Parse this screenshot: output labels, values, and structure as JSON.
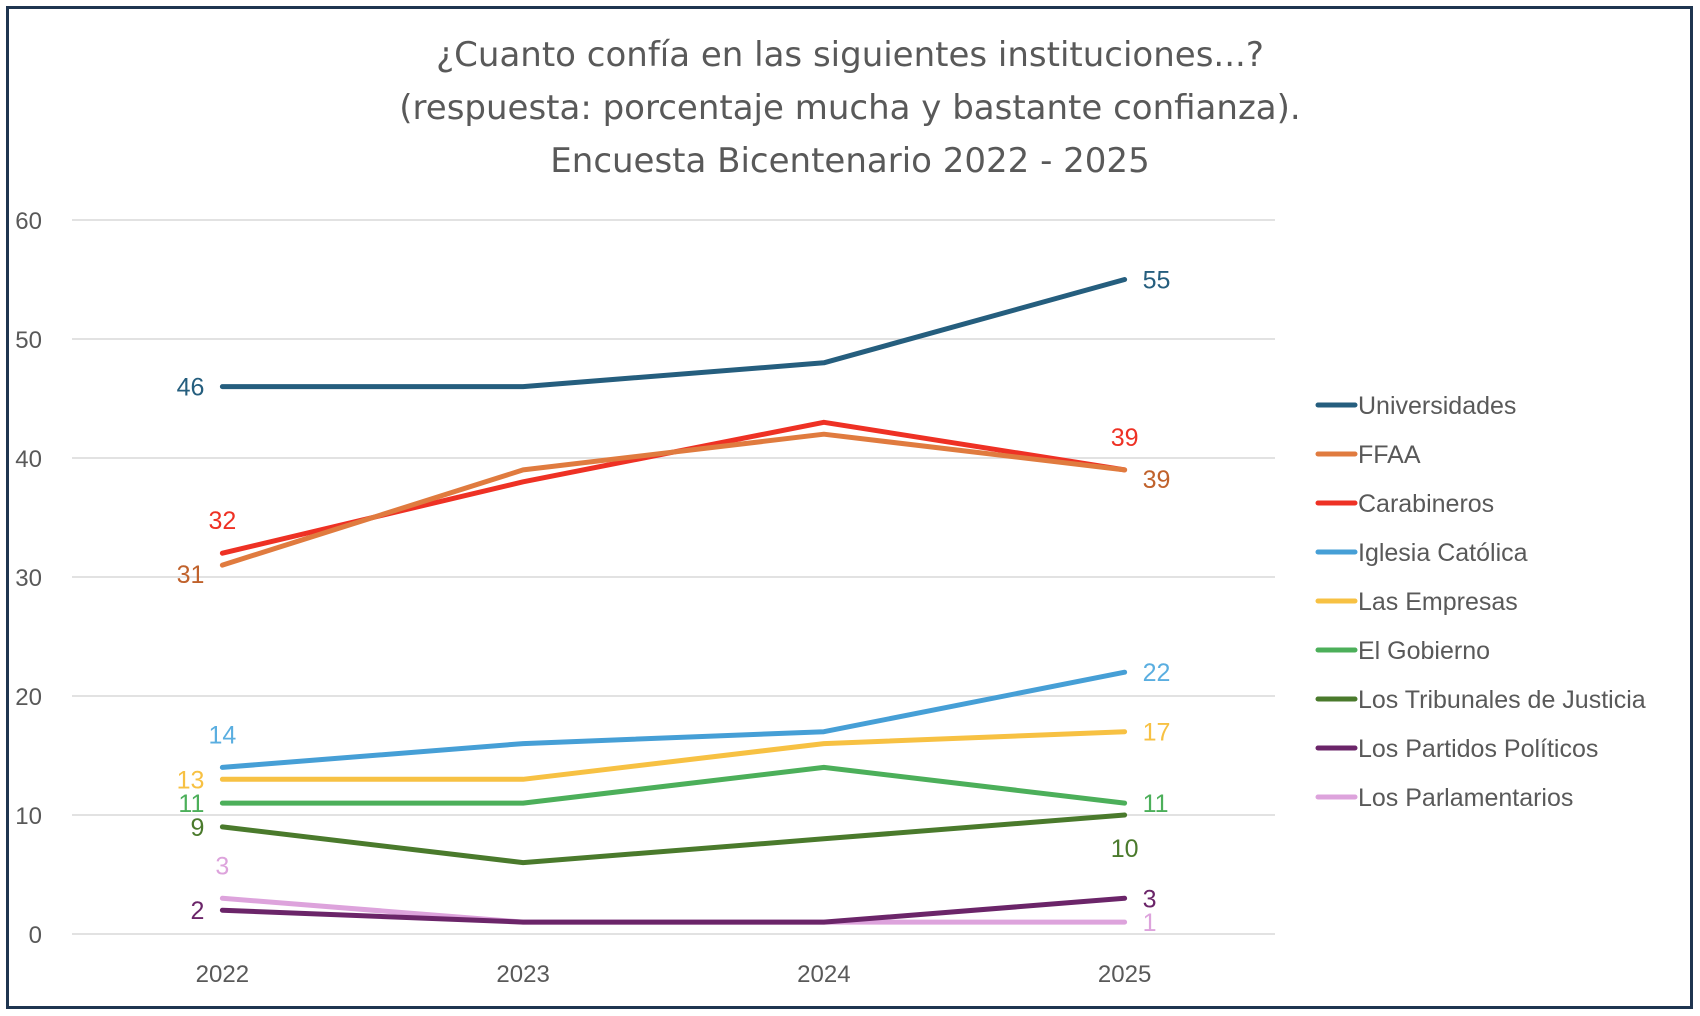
{
  "chart_data": {
    "type": "line",
    "title": [
      "¿Cuanto confía en las siguientes instituciones...?",
      "(respuesta: porcentaje mucha y bastante confianza).",
      "Encuesta Bicentenario 2022 - 2025"
    ],
    "xlabel": "",
    "ylabel": "",
    "categories": [
      "2022",
      "2023",
      "2024",
      "2025"
    ],
    "ylim": [
      0,
      60
    ],
    "yticks": [
      0,
      10,
      20,
      30,
      40,
      50,
      60
    ],
    "grid": true,
    "legend_position": "right",
    "series": [
      {
        "name": "Universidades",
        "color": "#255E7E",
        "label_color": "#255E7E",
        "values": [
          46,
          46,
          48,
          55
        ],
        "labels": {
          "first": "46",
          "last": "55"
        }
      },
      {
        "name": "FFAA",
        "color": "#E07B3F",
        "label_color": "#C0622C",
        "values": [
          31,
          39,
          42,
          39
        ],
        "labels": {
          "first": "31",
          "last": "39"
        }
      },
      {
        "name": "Carabineros",
        "color": "#EE3124",
        "label_color": "#EE3124",
        "values": [
          32,
          38,
          43,
          39
        ],
        "labels": {
          "first": "32",
          "last": "39"
        }
      },
      {
        "name": "Iglesia Católica",
        "color": "#469FD6",
        "label_color": "#5AAEE0",
        "values": [
          14,
          16,
          17,
          22
        ],
        "labels": {
          "first": "14",
          "last": "22"
        }
      },
      {
        "name": "Las Empresas",
        "color": "#F7C143",
        "label_color": "#F7C143",
        "values": [
          13,
          13,
          16,
          17
        ],
        "labels": {
          "first": "13",
          "last": "17"
        }
      },
      {
        "name": "El Gobierno",
        "color": "#4CAF5A",
        "label_color": "#4CAF5A",
        "values": [
          11,
          11,
          14,
          11
        ],
        "labels": {
          "first": "11",
          "last": "11"
        }
      },
      {
        "name": "Los Tribunales de Justicia",
        "color": "#4A7A2C",
        "label_color": "#4A7A2C",
        "values": [
          9,
          6,
          8,
          10
        ],
        "labels": {
          "first": "9",
          "last": "10"
        }
      },
      {
        "name": "Los Partidos Políticos",
        "color": "#6B2569",
        "label_color": "#6B2569",
        "values": [
          2,
          1,
          1,
          3
        ],
        "labels": {
          "first": "2",
          "last": "3"
        }
      },
      {
        "name": "Los Parlamentarios",
        "color": "#DDA3DC",
        "label_color": "#DDA3DC",
        "values": [
          3,
          1,
          1,
          1
        ],
        "labels": {
          "first": "3",
          "last": "1"
        }
      }
    ]
  }
}
